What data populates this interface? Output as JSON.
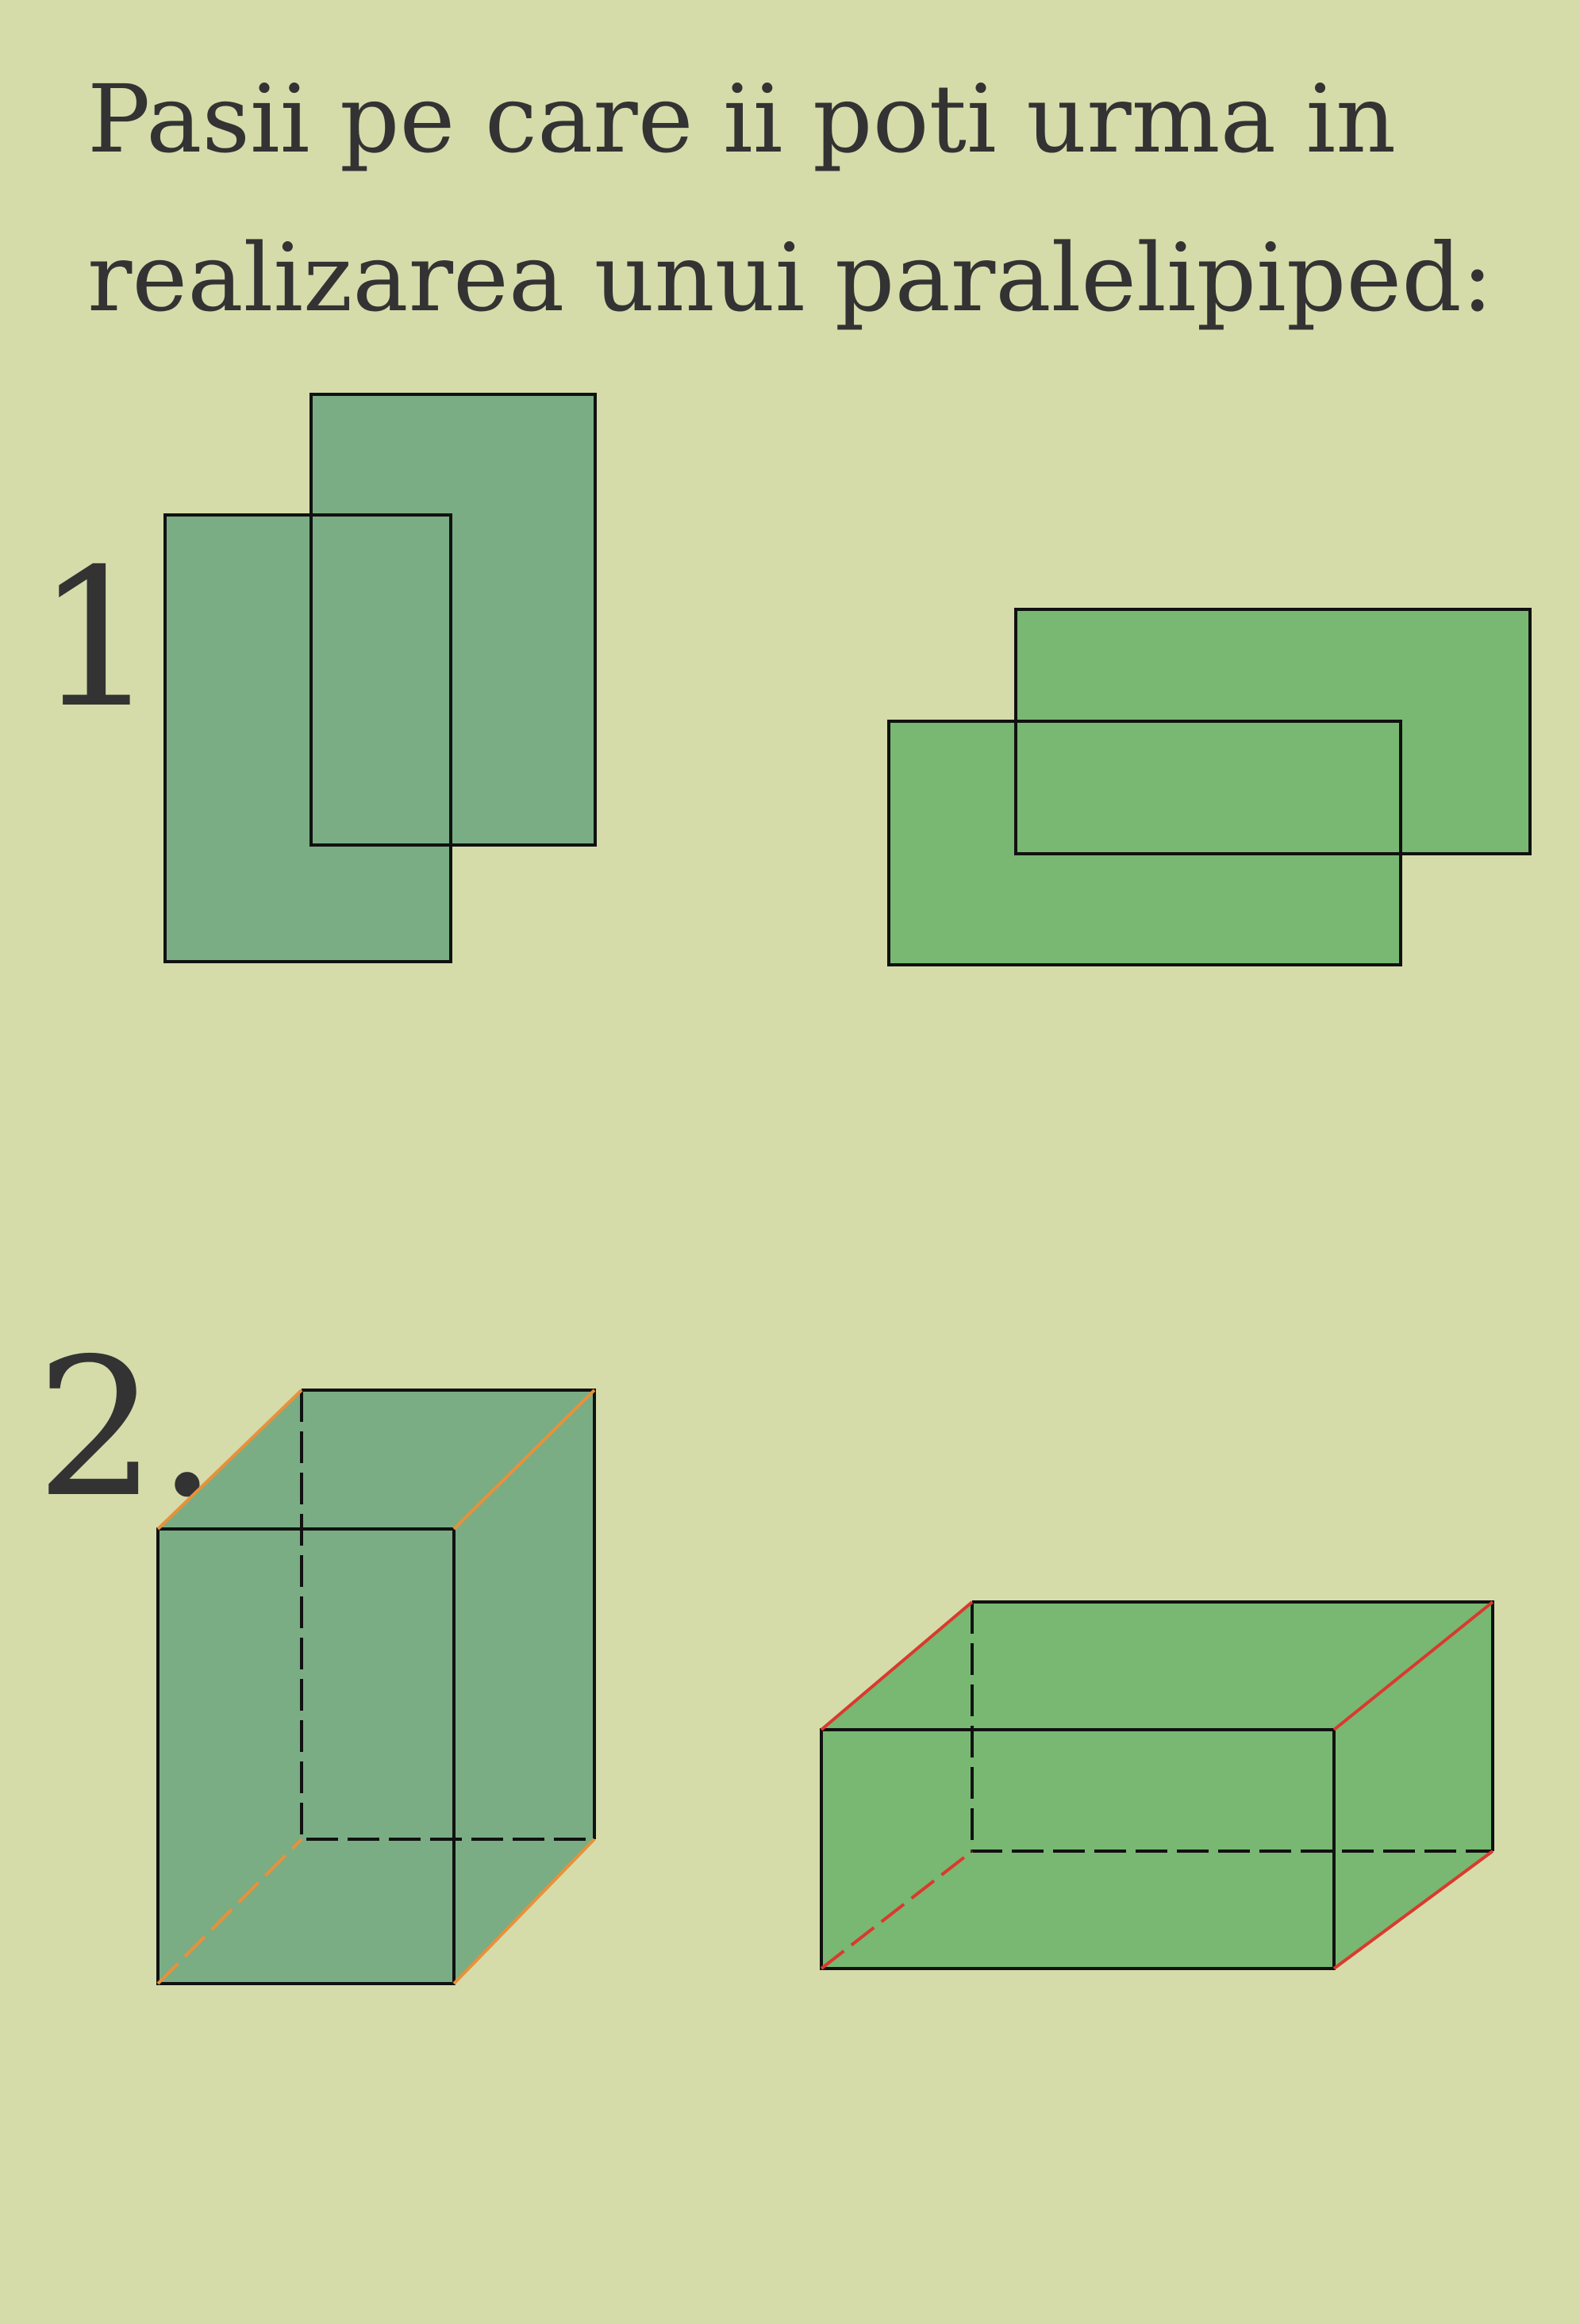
{
  "title": {
    "line1": "Pasii pe care ii poti urma in",
    "line2": "realizarea unui paralelipiped:"
  },
  "steps": [
    {
      "label": "1."
    },
    {
      "label": "2."
    }
  ],
  "colors": {
    "background": "#d5dcaa",
    "text": "#333333",
    "tall_fill": "#7aad84",
    "wide_fill": "#78b872",
    "outline": "#111111",
    "tall_edges": "#e8913a",
    "wide_edges": "#d93a2e"
  }
}
